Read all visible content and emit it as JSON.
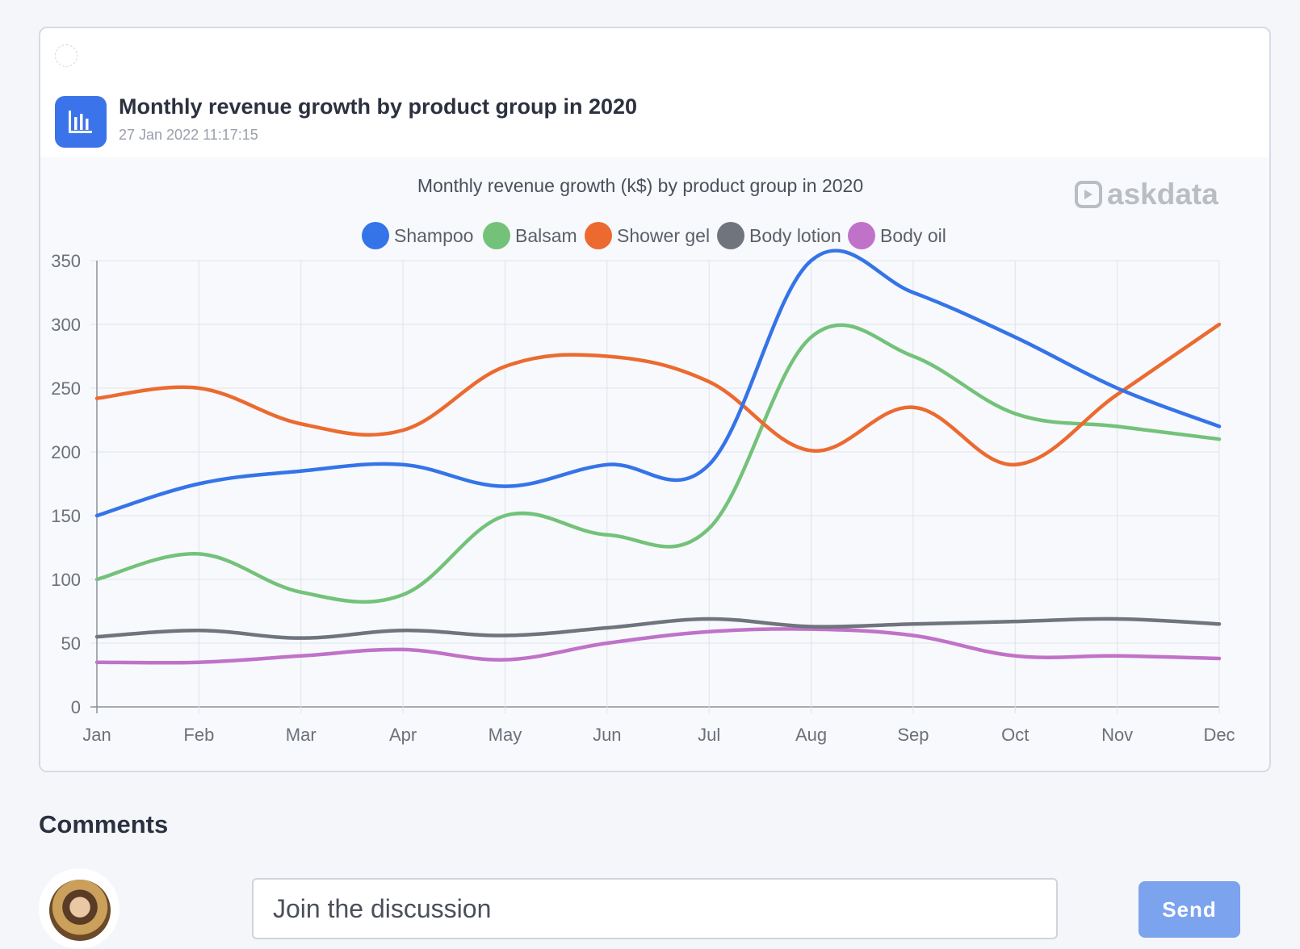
{
  "card": {
    "title": "Monthly revenue growth by product group in 2020",
    "date": "27 Jan 2022 11:17:15",
    "icon": "bar-chart-icon"
  },
  "watermark": "askdata",
  "chart_data": {
    "type": "line",
    "title": "Monthly revenue growth (k$) by product group in 2020",
    "categories": [
      "Jan",
      "Feb",
      "Mar",
      "Apr",
      "May",
      "Jun",
      "Jul",
      "Aug",
      "Sep",
      "Oct",
      "Nov",
      "Dec"
    ],
    "ylim": [
      0,
      350
    ],
    "yticks": [
      0,
      50,
      100,
      150,
      200,
      250,
      300,
      350
    ],
    "grid": true,
    "legend_position": "top",
    "series": [
      {
        "name": "Shampoo",
        "color": "#3574e8",
        "values": [
          150,
          175,
          185,
          190,
          173,
          190,
          190,
          350,
          325,
          290,
          250,
          220
        ]
      },
      {
        "name": "Balsam",
        "color": "#74c27a",
        "values": [
          100,
          120,
          90,
          88,
          150,
          135,
          140,
          290,
          275,
          230,
          220,
          210
        ]
      },
      {
        "name": "Shower gel",
        "color": "#ec6a30",
        "values": [
          242,
          250,
          222,
          217,
          267,
          275,
          255,
          201,
          235,
          190,
          245,
          300
        ]
      },
      {
        "name": "Body lotion",
        "color": "#6f747d",
        "values": [
          55,
          60,
          54,
          60,
          56,
          62,
          69,
          63,
          65,
          67,
          69,
          65
        ]
      },
      {
        "name": "Body oil",
        "color": "#c072c8",
        "values": [
          35,
          35,
          40,
          45,
          37,
          50,
          59,
          61,
          56,
          40,
          40,
          38
        ]
      }
    ]
  },
  "comments": {
    "heading": "Comments",
    "input_placeholder": "Join the discussion",
    "send_label": "Send"
  }
}
